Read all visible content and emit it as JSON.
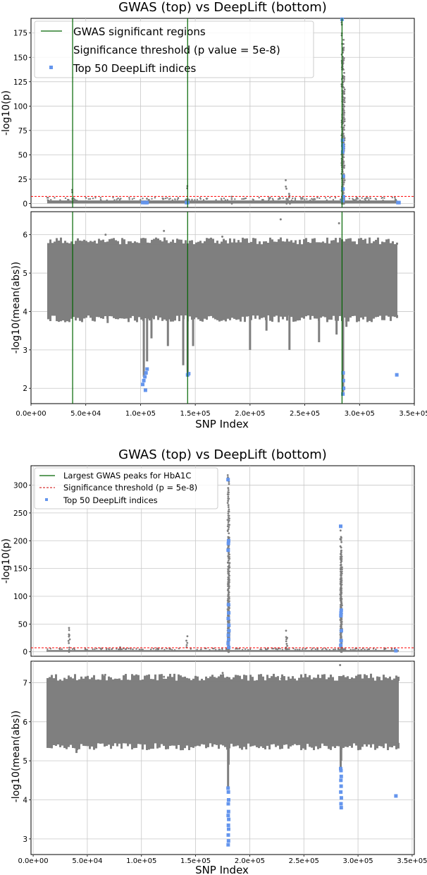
{
  "chart_data": [
    {
      "type": "scatter",
      "title": "GWAS (top) vs DeepLift (bottom)",
      "xlabel": "SNP Index",
      "xlim": [
        0,
        350000
      ],
      "x_ticks": [
        0,
        50000,
        100000,
        150000,
        200000,
        250000,
        300000,
        350000
      ],
      "x_tick_labels": [
        "0.0e+00",
        "5.0e+04",
        "1.0e+05",
        "1.5e+05",
        "2.0e+05",
        "2.5e+05",
        "3.0e+05",
        "3.5e+05"
      ],
      "grid": true,
      "legend_position": "top-left",
      "legend": {
        "green_line": "GWAS significant regions",
        "threshold_line": "Significance threshold (p value = 5e-8)",
        "blue_points": "Top 50 DeepLift indices"
      },
      "colors": {
        "gwas": "#7f7f7f",
        "deeplift": "#7f7f7f",
        "top50": "#6495ed",
        "region": "#006400",
        "threshold": "#ff0000"
      },
      "vlines": [
        38000,
        143000,
        284000
      ],
      "top": {
        "ylabel": "-log10(p)",
        "ylim": [
          -4,
          190
        ],
        "y_ticks": [
          0,
          25,
          50,
          75,
          100,
          125,
          150,
          175
        ],
        "threshold_value": 7.3,
        "baseline_range": [
          0.2,
          3.2
        ],
        "peaks": [
          {
            "x": 38000,
            "y": 14
          },
          {
            "x": 106000,
            "y": 5
          },
          {
            "x": 143000,
            "y": 18
          },
          {
            "x": 160000,
            "y": 5
          },
          {
            "x": 183000,
            "y": 7
          },
          {
            "x": 233000,
            "y": 24
          },
          {
            "x": 236000,
            "y": 10
          },
          {
            "x": 284000,
            "y": 190
          },
          {
            "x": 285000,
            "y": 168
          },
          {
            "x": 285500,
            "y": 160
          },
          {
            "x": 284500,
            "y": 145
          },
          {
            "x": 286000,
            "y": 130
          },
          {
            "x": 285000,
            "y": 115
          },
          {
            "x": 284200,
            "y": 85
          }
        ],
        "top50": [
          {
            "x": 102000,
            "y": 1
          },
          {
            "x": 104000,
            "y": 1
          },
          {
            "x": 105000,
            "y": 1
          },
          {
            "x": 106000,
            "y": 1
          },
          {
            "x": 142000,
            "y": 1
          },
          {
            "x": 143000,
            "y": 1
          },
          {
            "x": 284000,
            "y": 189
          },
          {
            "x": 284500,
            "y": 65
          },
          {
            "x": 284800,
            "y": 60
          },
          {
            "x": 285000,
            "y": 57
          },
          {
            "x": 284600,
            "y": 53
          },
          {
            "x": 285200,
            "y": 28
          },
          {
            "x": 284900,
            "y": 15
          },
          {
            "x": 285300,
            "y": 7
          },
          {
            "x": 284700,
            "y": 3
          },
          {
            "x": 335000,
            "y": 1
          },
          {
            "x": 336000,
            "y": 1
          }
        ]
      },
      "bottom": {
        "ylabel": "-log10(mean(abs))",
        "ylim": [
          1.6,
          6.6
        ],
        "y_ticks": [
          2,
          3,
          4,
          5,
          6
        ],
        "band_upper": 5.75,
        "band_lower": 3.9,
        "outliers_high": [
          6.0,
          6.1,
          5.95,
          6.4,
          6.3
        ],
        "dips": [
          {
            "x": 70000,
            "y": 3.7
          },
          {
            "x": 103000,
            "y": 2.3
          },
          {
            "x": 106000,
            "y": 2.7
          },
          {
            "x": 110000,
            "y": 3.3
          },
          {
            "x": 125000,
            "y": 3.1
          },
          {
            "x": 139000,
            "y": 2.6
          },
          {
            "x": 143000,
            "y": 2.3
          },
          {
            "x": 148000,
            "y": 3.1
          },
          {
            "x": 200000,
            "y": 3.0
          },
          {
            "x": 215000,
            "y": 3.5
          },
          {
            "x": 236000,
            "y": 3.0
          },
          {
            "x": 263000,
            "y": 3.2
          },
          {
            "x": 279000,
            "y": 3.4
          },
          {
            "x": 285000,
            "y": 1.9
          },
          {
            "x": 288000,
            "y": 3.6
          }
        ],
        "top50": [
          {
            "x": 102000,
            "y": 2.1
          },
          {
            "x": 103000,
            "y": 2.2
          },
          {
            "x": 104000,
            "y": 2.3
          },
          {
            "x": 105000,
            "y": 2.4
          },
          {
            "x": 106000,
            "y": 2.5
          },
          {
            "x": 104500,
            "y": 1.95
          },
          {
            "x": 143000,
            "y": 2.35
          },
          {
            "x": 144000,
            "y": 2.38
          },
          {
            "x": 285000,
            "y": 2.4
          },
          {
            "x": 285200,
            "y": 2.2
          },
          {
            "x": 285400,
            "y": 2.0
          },
          {
            "x": 284800,
            "y": 1.85
          },
          {
            "x": 334000,
            "y": 2.35
          }
        ]
      }
    },
    {
      "type": "scatter",
      "title": "GWAS (top) vs DeepLift (bottom)",
      "xlabel": "SNP Index",
      "xlim": [
        -2000,
        352000
      ],
      "x_ticks": [
        0,
        50000,
        100000,
        150000,
        200000,
        250000,
        300000,
        350000
      ],
      "x_tick_labels": [
        "0.0e+00",
        "5.0e+04",
        "1.0e+05",
        "1.5e+05",
        "2.0e+05",
        "2.5e+05",
        "3.0e+05",
        "3.5e+05"
      ],
      "grid": true,
      "legend_position": "top-left",
      "legend": {
        "green_line": "Largest GWAS peaks for HbA1C",
        "threshold_line": "Significance threshold (p = 5e-8)",
        "blue_points": "Top 50 DeepLift indices"
      },
      "colors": {
        "gwas": "#7f7f7f",
        "deeplift": "#7f7f7f",
        "top50": "#6495ed",
        "region": "#006400",
        "threshold": "#ff0000"
      },
      "vlines": [],
      "top": {
        "ylabel": "-log10(p)",
        "ylim": [
          -8,
          335
        ],
        "y_ticks": [
          0,
          50,
          100,
          150,
          200,
          250,
          300
        ],
        "threshold_value": 7.3,
        "baseline_range": [
          0.2,
          3.2
        ],
        "peaks": [
          {
            "x": 33000,
            "y": 43
          },
          {
            "x": 33500,
            "y": 30
          },
          {
            "x": 80000,
            "y": 8
          },
          {
            "x": 142000,
            "y": 28
          },
          {
            "x": 180000,
            "y": 318
          },
          {
            "x": 180500,
            "y": 310
          },
          {
            "x": 181000,
            "y": 240
          },
          {
            "x": 180200,
            "y": 225
          },
          {
            "x": 180800,
            "y": 190
          },
          {
            "x": 180300,
            "y": 140
          },
          {
            "x": 180600,
            "y": 130
          },
          {
            "x": 180100,
            "y": 100
          },
          {
            "x": 180700,
            "y": 90
          },
          {
            "x": 180400,
            "y": 70
          },
          {
            "x": 234000,
            "y": 38
          },
          {
            "x": 234500,
            "y": 25
          },
          {
            "x": 284000,
            "y": 226
          },
          {
            "x": 284500,
            "y": 205
          },
          {
            "x": 284200,
            "y": 190
          },
          {
            "x": 284800,
            "y": 175
          },
          {
            "x": 284300,
            "y": 150
          },
          {
            "x": 284600,
            "y": 140
          },
          {
            "x": 284100,
            "y": 115
          },
          {
            "x": 284700,
            "y": 100
          },
          {
            "x": 284400,
            "y": 80
          }
        ],
        "top50": [
          {
            "x": 180000,
            "y": 310
          },
          {
            "x": 180500,
            "y": 200
          },
          {
            "x": 180300,
            "y": 195
          },
          {
            "x": 180100,
            "y": 183
          },
          {
            "x": 180400,
            "y": 85
          },
          {
            "x": 180600,
            "y": 70
          },
          {
            "x": 180200,
            "y": 60
          },
          {
            "x": 180700,
            "y": 48
          },
          {
            "x": 180800,
            "y": 38
          },
          {
            "x": 180300,
            "y": 30
          },
          {
            "x": 180500,
            "y": 22
          },
          {
            "x": 180100,
            "y": 15
          },
          {
            "x": 180600,
            "y": 8
          },
          {
            "x": 284000,
            "y": 226
          },
          {
            "x": 284500,
            "y": 75
          },
          {
            "x": 284300,
            "y": 70
          },
          {
            "x": 284200,
            "y": 65
          },
          {
            "x": 284600,
            "y": 38
          },
          {
            "x": 284400,
            "y": 20
          },
          {
            "x": 284100,
            "y": 12
          },
          {
            "x": 335000,
            "y": 2
          }
        ]
      },
      "bottom": {
        "ylabel": "-log10(mean(abs))",
        "ylim": [
          2.6,
          7.55
        ],
        "y_ticks": [
          3,
          4,
          5,
          6,
          7
        ],
        "band_upper": 7.05,
        "band_lower": 5.45,
        "outliers_high": [
          7.2,
          7.15,
          7.25,
          7.1,
          7.45
        ],
        "dips": [
          {
            "x": 40000,
            "y": 5.2
          },
          {
            "x": 180000,
            "y": 4.3
          },
          {
            "x": 180500,
            "y": 4.9
          },
          {
            "x": 284000,
            "y": 4.8
          },
          {
            "x": 284500,
            "y": 5.0
          }
        ],
        "top50": [
          {
            "x": 180000,
            "y": 4.3
          },
          {
            "x": 180300,
            "y": 4.2
          },
          {
            "x": 180500,
            "y": 4.0
          },
          {
            "x": 180200,
            "y": 3.9
          },
          {
            "x": 180400,
            "y": 3.7
          },
          {
            "x": 180100,
            "y": 3.6
          },
          {
            "x": 180600,
            "y": 3.5
          },
          {
            "x": 180300,
            "y": 3.35
          },
          {
            "x": 180500,
            "y": 3.25
          },
          {
            "x": 180200,
            "y": 3.1
          },
          {
            "x": 180400,
            "y": 2.95
          },
          {
            "x": 180100,
            "y": 2.85
          },
          {
            "x": 284000,
            "y": 4.8
          },
          {
            "x": 284300,
            "y": 4.75
          },
          {
            "x": 284500,
            "y": 4.6
          },
          {
            "x": 284200,
            "y": 4.5
          },
          {
            "x": 284400,
            "y": 4.35
          },
          {
            "x": 284100,
            "y": 4.2
          },
          {
            "x": 284600,
            "y": 4.05
          },
          {
            "x": 284300,
            "y": 3.9
          },
          {
            "x": 284500,
            "y": 3.8
          },
          {
            "x": 335000,
            "y": 4.1
          }
        ]
      }
    }
  ]
}
